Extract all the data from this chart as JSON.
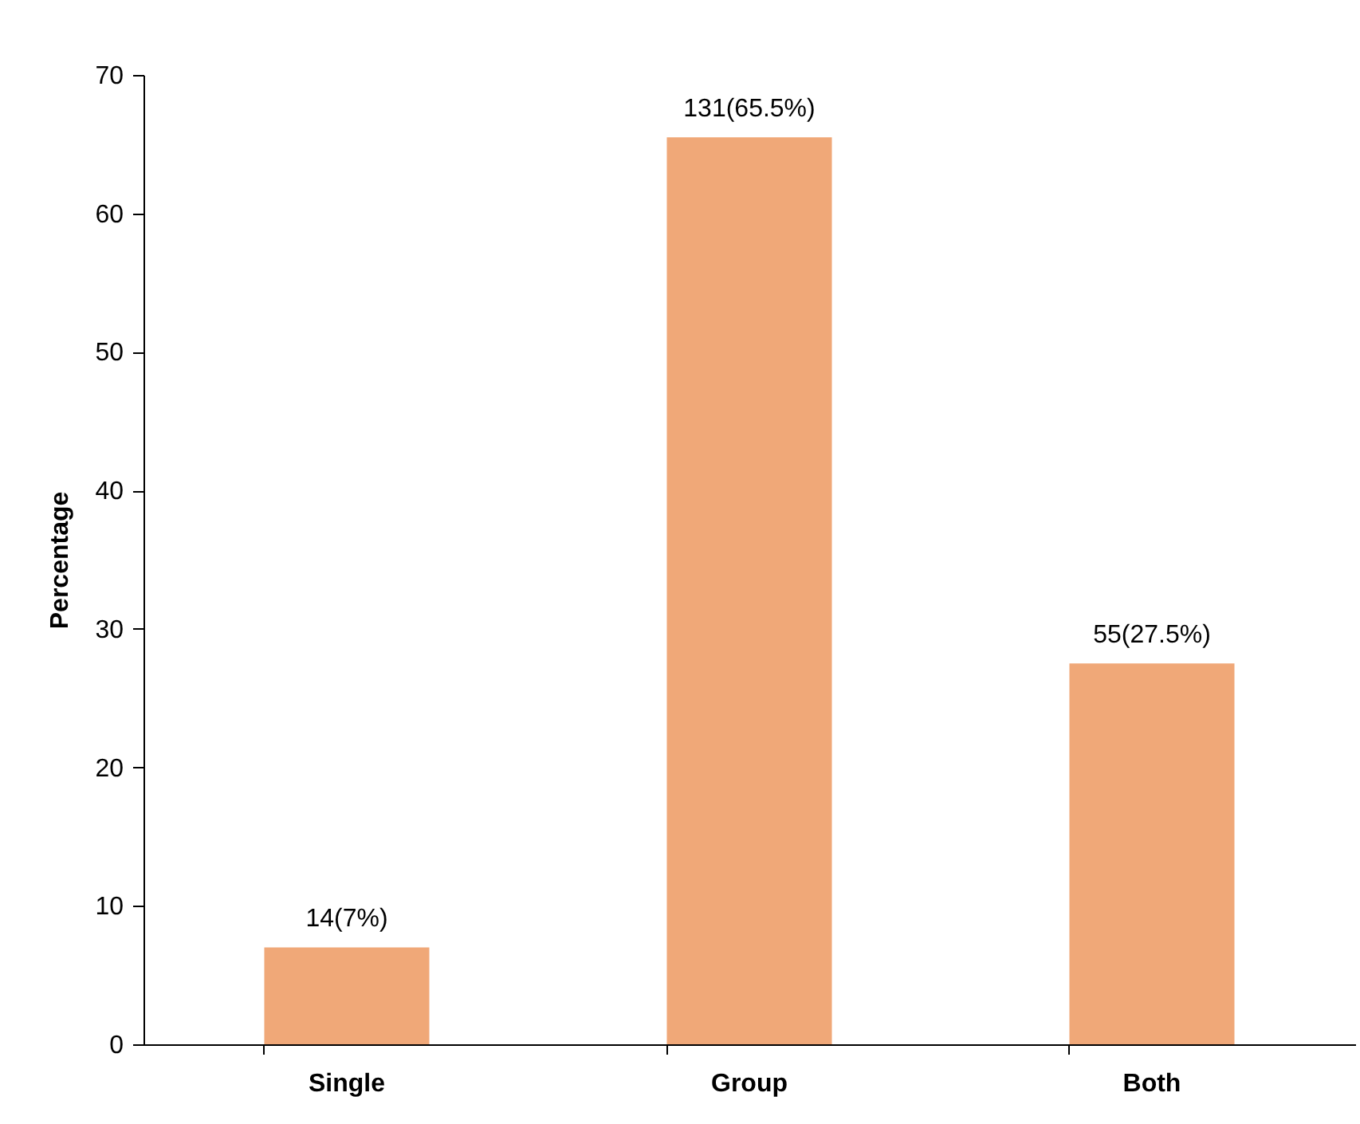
{
  "chart_data": {
    "type": "bar",
    "ylabel": "Percentage",
    "categories": [
      "Single",
      "Group",
      "Both"
    ],
    "values": [
      7,
      65.5,
      27.5
    ],
    "value_labels": [
      "14(7%)",
      "131(65.5%)",
      "55(27.5%)"
    ],
    "color": "#f0a878",
    "ylim": [
      0,
      70
    ],
    "yticks": [
      0,
      10,
      20,
      30,
      40,
      50,
      60,
      70
    ],
    "grid": false
  }
}
